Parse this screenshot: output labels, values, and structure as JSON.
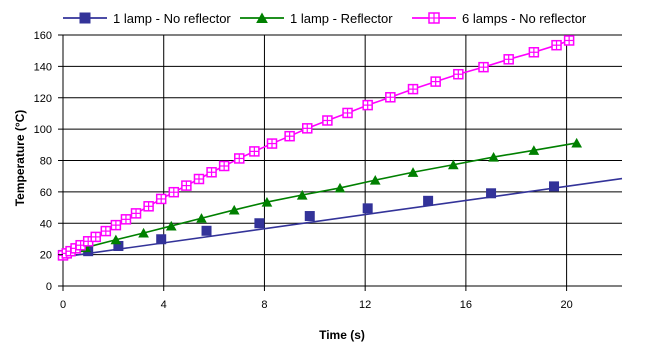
{
  "chart_data": {
    "type": "line",
    "title": "",
    "xlabel": "Time (s)",
    "ylabel": "Temperature (°C)",
    "xlim": [
      0,
      22.2
    ],
    "ylim": [
      0,
      160
    ],
    "xticks": [
      0,
      4,
      8,
      12,
      16,
      20
    ],
    "yticks": [
      0,
      20,
      40,
      60,
      80,
      100,
      120,
      140,
      160
    ],
    "grid": true,
    "legend_position": "top",
    "series": [
      {
        "name": "1 lamp - No reflector",
        "color": "#333399",
        "marker": "square-filled",
        "line_x": [
          0,
          22.2
        ],
        "line_y": [
          18.5,
          68.5
        ],
        "x": [
          0,
          1,
          2.2,
          3.9,
          5.7,
          7.8,
          9.8,
          12.1,
          14.5,
          17,
          19.5
        ],
        "y": [
          19.8,
          22.2,
          25.5,
          29.8,
          35.2,
          40,
          44.6,
          49.5,
          54.3,
          59.1,
          63.5
        ]
      },
      {
        "name": "1 lamp - Reflector",
        "color": "#008000",
        "marker": "triangle-filled",
        "x": [
          0,
          0.9,
          2.1,
          3.2,
          4.3,
          5.5,
          6.8,
          8.1,
          9.5,
          11,
          12.4,
          13.9,
          15.5,
          17.1,
          18.7,
          20.4
        ],
        "y": [
          20,
          24.5,
          29.5,
          33.8,
          38.3,
          43.2,
          48.5,
          53.5,
          58,
          62.5,
          67.5,
          72.5,
          77.3,
          82.2,
          86.5,
          91.2
        ]
      },
      {
        "name": "6 lamps - No reflector",
        "color": "#ff00ff",
        "marker": "square-open-cross",
        "x": [
          0,
          0.15,
          0.3,
          0.5,
          0.7,
          1,
          1.3,
          1.7,
          2.1,
          2.5,
          2.9,
          3.4,
          3.9,
          4.4,
          4.9,
          5.4,
          5.9,
          6.4,
          7,
          7.6,
          8.3,
          9,
          9.7,
          10.5,
          11.3,
          12.1,
          13,
          13.9,
          14.8,
          15.7,
          16.7,
          17.7,
          18.7,
          19.6,
          20.1
        ],
        "y": [
          19.5,
          20.8,
          22.2,
          24,
          26,
          28.5,
          31.3,
          35,
          38.8,
          42.5,
          46.3,
          50.8,
          55.5,
          59.8,
          64,
          68.2,
          72.5,
          76.5,
          81.3,
          85.8,
          90.8,
          95.5,
          100.5,
          105.5,
          110.3,
          115.3,
          120.3,
          125.5,
          130.3,
          135,
          139.5,
          144.5,
          149,
          153.5,
          156.5
        ]
      }
    ]
  }
}
